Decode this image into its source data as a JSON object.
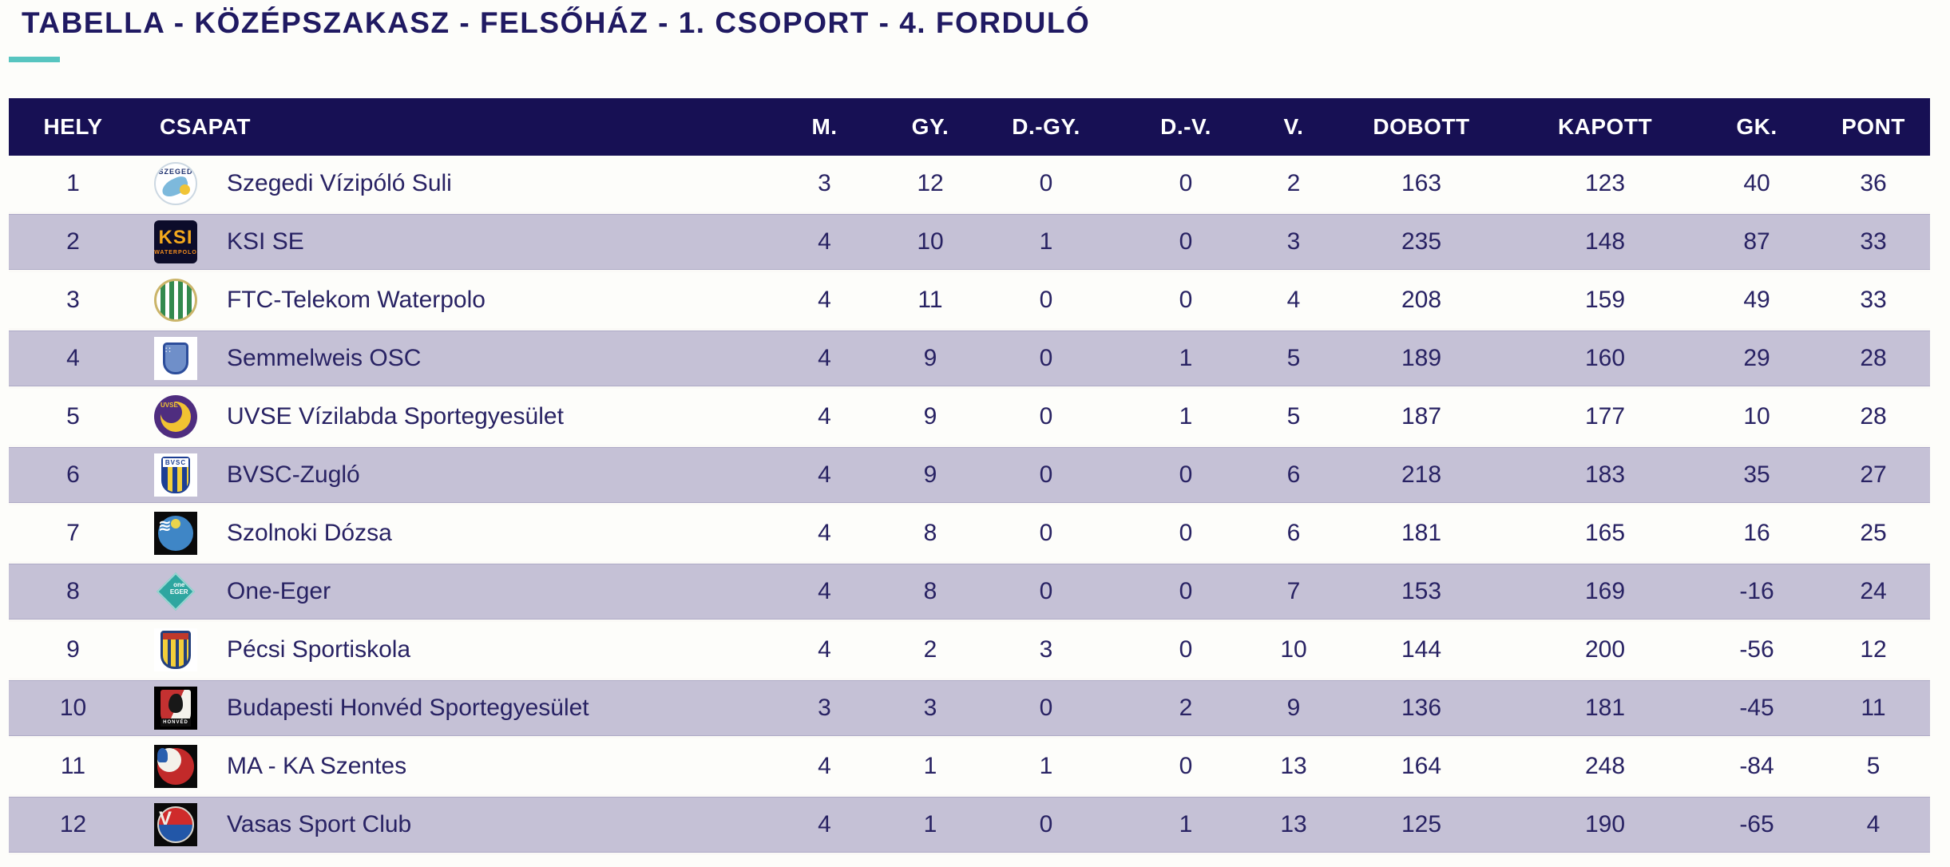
{
  "page": {
    "title": "TABELLA - KÖZÉPSZAKASZ - FELSŐHÁZ - 1. CSOPORT - 4. FORDULÓ",
    "colors": {
      "accent_teal": "#57c5c0",
      "header_background": "#171054",
      "alt_row_background": "#c5c1d6",
      "title_text": "#201a62",
      "body_text": "#282263"
    }
  },
  "table": {
    "columns": [
      {
        "key": "hely",
        "label": "HELY"
      },
      {
        "key": "csapat",
        "label": "CSAPAT"
      },
      {
        "key": "m",
        "label": "M."
      },
      {
        "key": "gy",
        "label": "GY."
      },
      {
        "key": "dgy",
        "label": "D.-GY."
      },
      {
        "key": "dv",
        "label": "D.-V."
      },
      {
        "key": "v",
        "label": "V."
      },
      {
        "key": "dobott",
        "label": "DOBOTT"
      },
      {
        "key": "kapott",
        "label": "KAPOTT"
      },
      {
        "key": "gk",
        "label": "GK."
      },
      {
        "key": "pont",
        "label": "PONT"
      }
    ],
    "rows": [
      {
        "hely": 1,
        "csapat": "Szegedi Vízipóló Suli",
        "logo": "szeged",
        "m": 3,
        "gy": 12,
        "dgy": 0,
        "dv": 0,
        "v": 2,
        "dobott": 163,
        "kapott": 123,
        "gk": 40,
        "pont": 36
      },
      {
        "hely": 2,
        "csapat": "KSI SE",
        "logo": "ksi",
        "m": 4,
        "gy": 10,
        "dgy": 1,
        "dv": 0,
        "v": 3,
        "dobott": 235,
        "kapott": 148,
        "gk": 87,
        "pont": 33
      },
      {
        "hely": 3,
        "csapat": "FTC-Telekom Waterpolo",
        "logo": "ftc",
        "m": 4,
        "gy": 11,
        "dgy": 0,
        "dv": 0,
        "v": 4,
        "dobott": 208,
        "kapott": 159,
        "gk": 49,
        "pont": 33
      },
      {
        "hely": 4,
        "csapat": "Semmelweis OSC",
        "logo": "semmelweis",
        "m": 4,
        "gy": 9,
        "dgy": 0,
        "dv": 1,
        "v": 5,
        "dobott": 189,
        "kapott": 160,
        "gk": 29,
        "pont": 28
      },
      {
        "hely": 5,
        "csapat": "UVSE Vízilabda Sportegyesület",
        "logo": "uvse",
        "m": 4,
        "gy": 9,
        "dgy": 0,
        "dv": 1,
        "v": 5,
        "dobott": 187,
        "kapott": 177,
        "gk": 10,
        "pont": 28
      },
      {
        "hely": 6,
        "csapat": "BVSC-Zugló",
        "logo": "bvsc",
        "m": 4,
        "gy": 9,
        "dgy": 0,
        "dv": 0,
        "v": 6,
        "dobott": 218,
        "kapott": 183,
        "gk": 35,
        "pont": 27
      },
      {
        "hely": 7,
        "csapat": "Szolnoki Dózsa",
        "logo": "szolnok",
        "m": 4,
        "gy": 8,
        "dgy": 0,
        "dv": 0,
        "v": 6,
        "dobott": 181,
        "kapott": 165,
        "gk": 16,
        "pont": 25
      },
      {
        "hely": 8,
        "csapat": "One-Eger",
        "logo": "eger",
        "m": 4,
        "gy": 8,
        "dgy": 0,
        "dv": 0,
        "v": 7,
        "dobott": 153,
        "kapott": 169,
        "gk": -16,
        "pont": 24
      },
      {
        "hely": 9,
        "csapat": "Pécsi Sportiskola",
        "logo": "pecs",
        "m": 4,
        "gy": 2,
        "dgy": 3,
        "dv": 0,
        "v": 10,
        "dobott": 144,
        "kapott": 200,
        "gk": -56,
        "pont": 12
      },
      {
        "hely": 10,
        "csapat": "Budapesti Honvéd Sportegyesület",
        "logo": "honved",
        "m": 3,
        "gy": 3,
        "dgy": 0,
        "dv": 2,
        "v": 9,
        "dobott": 136,
        "kapott": 181,
        "gk": -45,
        "pont": 11
      },
      {
        "hely": 11,
        "csapat": "MA - KA Szentes",
        "logo": "szentes",
        "m": 4,
        "gy": 1,
        "dgy": 1,
        "dv": 0,
        "v": 13,
        "dobott": 164,
        "kapott": 248,
        "gk": -84,
        "pont": 5
      },
      {
        "hely": 12,
        "csapat": "Vasas Sport Club",
        "logo": "vasas",
        "m": 4,
        "gy": 1,
        "dgy": 0,
        "dv": 1,
        "v": 13,
        "dobott": 125,
        "kapott": 190,
        "gk": -65,
        "pont": 4
      }
    ]
  }
}
